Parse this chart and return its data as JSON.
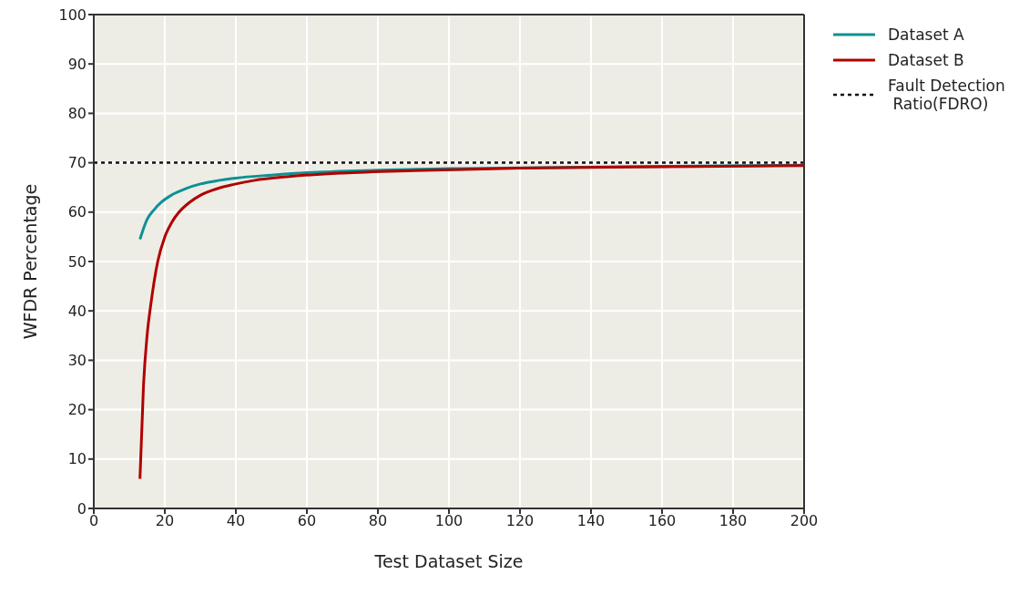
{
  "chart_data": {
    "type": "line",
    "xlabel": "Test Dataset Size",
    "ylabel": "WFDR Percentage",
    "xlim": [
      0,
      200
    ],
    "xticks": [
      0,
      20,
      40,
      60,
      80,
      100,
      120,
      140,
      160,
      180,
      200
    ],
    "ylim": [
      0,
      100
    ],
    "yticks": [
      0,
      10,
      20,
      30,
      40,
      50,
      60,
      70,
      80,
      90,
      100
    ],
    "grid": true,
    "legend": "top right",
    "line_style": "solid",
    "marker": "none",
    "series": [
      {
        "name": "Dataset A",
        "color": "#0e9191",
        "x": [
          13,
          15,
          17,
          19,
          22,
          26,
          30,
          35,
          40,
          50,
          60,
          80,
          100,
          150,
          200
        ],
        "values": [
          54.5,
          58.5,
          60.5,
          62,
          63.5,
          64.8,
          65.7,
          66.4,
          66.9,
          67.5,
          68,
          68.5,
          68.8,
          69.2,
          69.5
        ]
      },
      {
        "name": "Dataset B",
        "color": "#b00000",
        "x": [
          13,
          14,
          15,
          16,
          17,
          18,
          20,
          22,
          24,
          27,
          30,
          35,
          40,
          45,
          55,
          70,
          90,
          120,
          160,
          200
        ],
        "values": [
          6,
          25,
          35,
          41,
          46,
          50,
          55,
          58,
          60,
          62,
          63.4,
          64.8,
          65.7,
          66.4,
          67.2,
          67.9,
          68.4,
          68.9,
          69.2,
          69.4
        ]
      }
    ],
    "ref_lines": [
      {
        "axis": "y",
        "value": 70,
        "label": "Fault Detection\n Ratio(FDRO)",
        "color": "#111111",
        "line_style": "dashed"
      }
    ]
  }
}
